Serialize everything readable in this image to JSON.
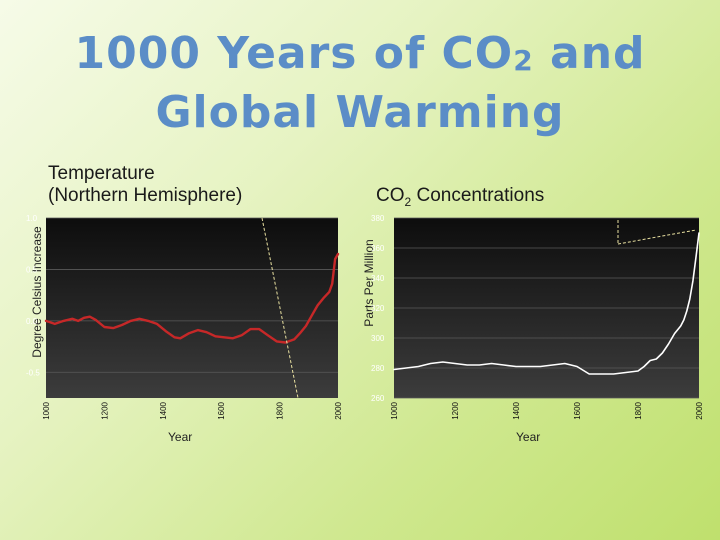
{
  "slide": {
    "title_line1": "1000 Years of CO",
    "title_sub": "2",
    "title_line1_end": " and",
    "title_line2": "Global Warming"
  },
  "colors": {
    "title": "#5b8dc7",
    "line": "#c62828",
    "panel_top": "#111111",
    "panel_bottom": "#3a3a3a"
  },
  "chart_data": [
    {
      "type": "line",
      "title": "Temperature\n(Northern Hemisphere)",
      "title_line1": "Temperature",
      "title_line2": "(Northern Hemisphere)",
      "xlabel": "Year",
      "ylabel": "Degree Celsius Increase",
      "xlim": [
        1000,
        2000
      ],
      "ylim": [
        -0.75,
        1.0
      ],
      "x_ticks": [
        "1000",
        "1200",
        "1400",
        "1600",
        "1800",
        "2000"
      ],
      "y_ticks": [
        "1.0",
        "0.5",
        "0.0",
        "-0.5"
      ],
      "grid": true,
      "series": [
        {
          "x": [
            1000,
            1030,
            1060,
            1090,
            1110,
            1130,
            1150,
            1170,
            1200,
            1230,
            1260,
            1290,
            1320,
            1350,
            1380,
            1410,
            1440,
            1460,
            1490,
            1520,
            1550,
            1580,
            1610,
            1640,
            1670,
            1700,
            1730,
            1760,
            1790,
            1820,
            1850,
            1870,
            1890,
            1910,
            1930,
            1950,
            1970,
            1980,
            1990,
            2000
          ],
          "y": [
            0.0,
            -0.03,
            0.0,
            0.02,
            0.0,
            0.03,
            0.04,
            0.01,
            -0.06,
            -0.07,
            -0.04,
            0.0,
            0.02,
            0.0,
            -0.03,
            -0.1,
            -0.16,
            -0.17,
            -0.12,
            -0.09,
            -0.11,
            -0.15,
            -0.16,
            -0.17,
            -0.14,
            -0.08,
            -0.08,
            -0.14,
            -0.2,
            -0.21,
            -0.18,
            -0.12,
            -0.05,
            0.05,
            0.15,
            0.22,
            0.28,
            0.36,
            0.6,
            0.65
          ]
        }
      ]
    },
    {
      "type": "line",
      "title": "CO2 Concentrations",
      "title_main": "CO",
      "title_sub": "2",
      "title_rest": " Concentrations",
      "xlabel": "Year",
      "ylabel": "Parts Per Million",
      "xlim": [
        1000,
        2000
      ],
      "ylim": [
        260,
        380
      ],
      "x_ticks": [
        "1000",
        "1200",
        "1400",
        "1600",
        "1800",
        "2000"
      ],
      "y_ticks": [
        "380",
        "360",
        "340",
        "320",
        "300",
        "280",
        "260"
      ],
      "grid": true,
      "series": [
        {
          "x": [
            1000,
            1040,
            1080,
            1120,
            1160,
            1200,
            1240,
            1280,
            1320,
            1360,
            1400,
            1440,
            1480,
            1520,
            1560,
            1600,
            1640,
            1680,
            1720,
            1760,
            1800,
            1820,
            1840,
            1860,
            1880,
            1900,
            1920,
            1940,
            1950,
            1960,
            1970,
            1980,
            1990,
            2000
          ],
          "y": [
            279,
            280,
            281,
            283,
            284,
            283,
            282,
            282,
            283,
            282,
            281,
            281,
            281,
            282,
            283,
            281,
            276,
            276,
            276,
            277,
            278,
            281,
            285,
            286,
            290,
            296,
            303,
            308,
            312,
            318,
            326,
            338,
            354,
            370
          ]
        }
      ]
    }
  ]
}
